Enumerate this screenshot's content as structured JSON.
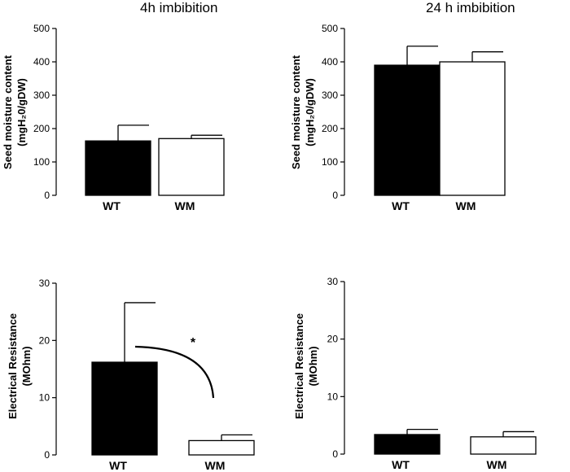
{
  "columns": [
    "4h imbibition",
    "24 h imbibition"
  ],
  "chart_data": [
    {
      "type": "bar",
      "title": "4h imbibition",
      "ylabel_lines": [
        "Seed moisture content",
        "(mgH₂0/gDW)"
      ],
      "categories": [
        "WT",
        "WM"
      ],
      "values": [
        163,
        170
      ],
      "errors": [
        47,
        10
      ],
      "fills": [
        "#000000",
        "#ffffff"
      ],
      "ylim": [
        0,
        500
      ],
      "yticks": [
        0,
        100,
        200,
        300,
        400,
        500
      ]
    },
    {
      "type": "bar",
      "title": "24 h imbibition",
      "ylabel_lines": [
        "Seed moisture content",
        "(mgH₂0/gDW)"
      ],
      "categories": [
        "WT",
        "WM"
      ],
      "values": [
        390,
        400
      ],
      "errors": [
        57,
        30
      ],
      "fills": [
        "#000000",
        "#ffffff"
      ],
      "ylim": [
        0,
        500
      ],
      "yticks": [
        0,
        100,
        200,
        300,
        400,
        500
      ]
    },
    {
      "type": "bar",
      "title": "4h imbibition",
      "ylabel_lines": [
        "Electrical Resistance",
        "(MOhm)"
      ],
      "categories": [
        "WT",
        "WM"
      ],
      "values": [
        16.2,
        2.5
      ],
      "errors": [
        10.4,
        1.0
      ],
      "fills": [
        "#000000",
        "#ffffff"
      ],
      "ylim": [
        0,
        30
      ],
      "yticks": [
        0,
        10,
        20,
        30
      ],
      "annotation": "*"
    },
    {
      "type": "bar",
      "title": "24 h imbibition",
      "ylabel_lines": [
        "Electrical Resistance",
        "(MOhm)"
      ],
      "categories": [
        "WT",
        "WM"
      ],
      "values": [
        3.4,
        3.0
      ],
      "errors": [
        0.9,
        0.9
      ],
      "fills": [
        "#000000",
        "#ffffff"
      ],
      "ylim": [
        0,
        30
      ],
      "yticks": [
        0,
        10,
        20,
        30
      ]
    }
  ]
}
